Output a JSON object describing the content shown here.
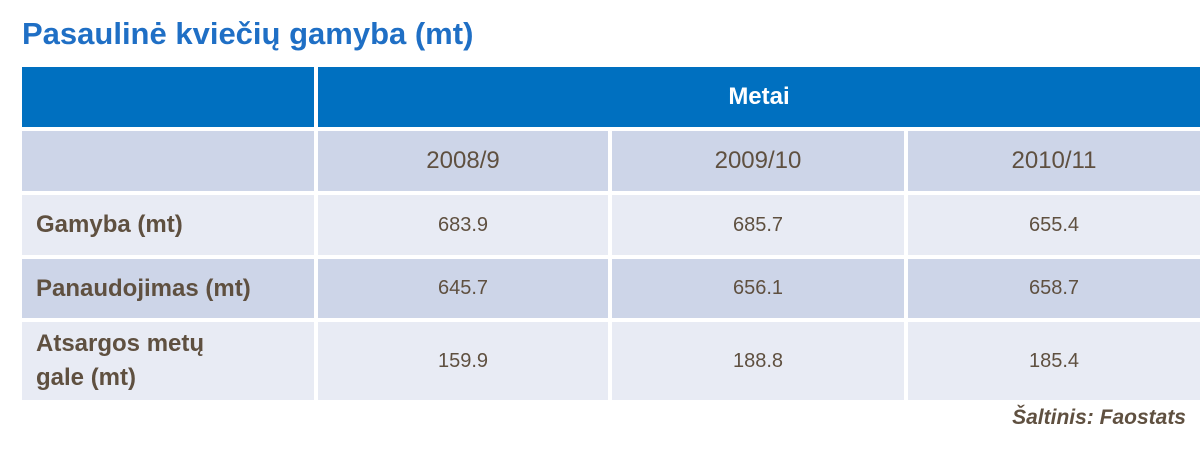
{
  "header": {
    "title": "Pasaulinė kviečių gamyba (mt)"
  },
  "table": {
    "group_header": "Metai",
    "columns": [
      "2008/9",
      "2009/10",
      "2010/11"
    ],
    "rows": [
      {
        "label": "Gamyba (mt)",
        "values": [
          683.9,
          685.7,
          655.4
        ]
      },
      {
        "label": "Panaudojimas (mt)",
        "values": [
          645.7,
          656.1,
          658.7
        ]
      },
      {
        "label": "Atsargos metų gale (mt)",
        "values": [
          159.9,
          188.8,
          185.4
        ]
      }
    ]
  },
  "source": "Šaltinis:  Faostats"
}
